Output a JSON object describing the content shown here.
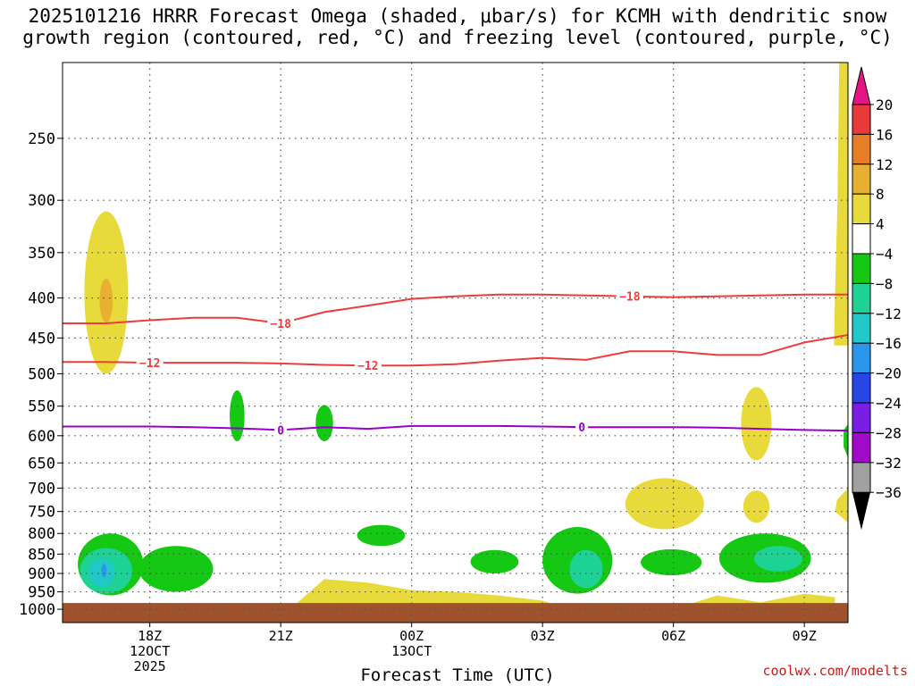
{
  "title_line1": "2025101216 HRRR Forecast Omega (shaded, μbar/s) for KCMH with dendritic snow",
  "title_line2": "growth region (contoured, red, °C) and freezing level (contoured, purple, °C)",
  "credit": "coolwx.com/modelts",
  "colors": {
    "ground": "#a0522d",
    "isotherm": "#ee3c3c",
    "freezing": "#9900cc",
    "grid": "#555555"
  },
  "chart_data": {
    "type": "heatmap",
    "title": "2025101216 HRRR Forecast Omega (shaded, μbar/s) for KCMH with dendritic snow growth region (contoured, red, °C) and freezing level (contoured, purple, °C)",
    "xlabel": "Forecast Time (UTC)",
    "ylabel": "",
    "x_ticks": [
      {
        "t": 18,
        "lines": [
          "18Z",
          "12OCT",
          "2025"
        ]
      },
      {
        "t": 21,
        "lines": [
          "21Z"
        ]
      },
      {
        "t": 24,
        "lines": [
          "00Z",
          "13OCT"
        ]
      },
      {
        "t": 27,
        "lines": [
          "03Z"
        ]
      },
      {
        "t": 30,
        "lines": [
          "06Z"
        ]
      },
      {
        "t": 33,
        "lines": [
          "09Z"
        ]
      }
    ],
    "xlim": [
      16,
      34
    ],
    "y_ticks": [
      250,
      300,
      350,
      400,
      450,
      500,
      550,
      600,
      650,
      700,
      750,
      800,
      850,
      900,
      950,
      1000
    ],
    "ylim_hpa": [
      200,
      1040
    ],
    "ylog": true,
    "colorbar": {
      "labels": [
        "20",
        "16",
        "12",
        "8",
        "4",
        "−4",
        "−8",
        "−12",
        "−16",
        "−20",
        "−24",
        "−28",
        "−32",
        "−36"
      ],
      "segments": [
        "#e8e8e8",
        "#e83a3a",
        "#e87d28",
        "#e8b030",
        "#e8da3a",
        "#ffffff",
        "#14c814",
        "#1ed296",
        "#20c8c8",
        "#2a96ee",
        "#2846e6",
        "#7a1ee6",
        "#a00ac8",
        "#a0a0a0"
      ],
      "top_arrow": "#e61482",
      "bottom_arrow": "#000000"
    },
    "contours": [
      {
        "name": "-18",
        "kind": "isotherm",
        "label_at": [
          [
            21.0,
            431
          ],
          [
            29.0,
            398
          ]
        ],
        "points": [
          [
            16,
            431
          ],
          [
            17,
            431
          ],
          [
            18,
            427
          ],
          [
            19,
            424
          ],
          [
            20,
            424
          ],
          [
            21,
            431
          ],
          [
            22,
            417
          ],
          [
            23,
            409
          ],
          [
            24,
            401
          ],
          [
            25,
            398
          ],
          [
            26,
            396
          ],
          [
            27,
            396
          ],
          [
            28,
            397
          ],
          [
            29,
            398
          ],
          [
            30,
            399
          ],
          [
            31,
            398
          ],
          [
            32,
            397
          ],
          [
            33,
            396
          ],
          [
            34,
            396
          ]
        ]
      },
      {
        "name": "-12",
        "kind": "isotherm",
        "label_at": [
          [
            18.0,
            484
          ],
          [
            23.0,
            488
          ]
        ],
        "points": [
          [
            16,
            483
          ],
          [
            17,
            483
          ],
          [
            18,
            484
          ],
          [
            19,
            484
          ],
          [
            20,
            484
          ],
          [
            21,
            485
          ],
          [
            22,
            487
          ],
          [
            23,
            488
          ],
          [
            24,
            488
          ],
          [
            25,
            486
          ],
          [
            26,
            481
          ],
          [
            27,
            477
          ],
          [
            28,
            480
          ],
          [
            29,
            468
          ],
          [
            30,
            468
          ],
          [
            31,
            473
          ],
          [
            32,
            473
          ],
          [
            33,
            456
          ],
          [
            34,
            446
          ]
        ]
      },
      {
        "name": "0",
        "kind": "freezing",
        "label_at": [
          [
            21.0,
            590
          ],
          [
            27.9,
            585
          ]
        ],
        "points": [
          [
            16,
            584
          ],
          [
            17,
            584
          ],
          [
            18,
            584
          ],
          [
            19,
            585
          ],
          [
            20,
            587
          ],
          [
            21,
            590
          ],
          [
            22,
            585
          ],
          [
            23,
            588
          ],
          [
            24,
            583
          ],
          [
            25,
            583
          ],
          [
            26,
            583
          ],
          [
            27,
            584
          ],
          [
            28,
            585
          ],
          [
            29,
            585
          ],
          [
            30,
            585
          ],
          [
            31,
            586
          ],
          [
            32,
            588
          ],
          [
            33,
            590
          ],
          [
            34,
            591
          ]
        ]
      }
    ],
    "omega_regions": [
      {
        "value": 6,
        "shape": "ellipse",
        "t": 17.0,
        "p": 400,
        "rt": 0.5,
        "rp_top": 310,
        "rp_bot": 500
      },
      {
        "value": 10,
        "shape": "ellipse",
        "t": 17.0,
        "p": 402,
        "rt": 0.15,
        "rp_top": 378,
        "rp_bot": 430
      },
      {
        "value": -6,
        "shape": "ellipse",
        "t": 17.1,
        "p": 880,
        "rt": 0.75,
        "rp_top": 800,
        "rp_bot": 960
      },
      {
        "value": -6,
        "shape": "ellipse",
        "t": 18.6,
        "p": 885,
        "rt": 0.85,
        "rp_top": 830,
        "rp_bot": 950
      },
      {
        "value": -10,
        "shape": "ellipse",
        "t": 17.0,
        "p": 885,
        "rt": 0.6,
        "rp_top": 835,
        "rp_bot": 955
      },
      {
        "value": -14,
        "shape": "ellipse",
        "t": 16.9,
        "p": 890,
        "rt": 0.3,
        "rp_top": 860,
        "rp_bot": 935
      },
      {
        "value": -18,
        "shape": "ellipse",
        "t": 16.95,
        "p": 890,
        "rt": 0.06,
        "rp_top": 875,
        "rp_bot": 910
      },
      {
        "value": -6,
        "shape": "ellipse",
        "t": 20.0,
        "p": 565,
        "rt": 0.17,
        "rp_top": 525,
        "rp_bot": 610
      },
      {
        "value": -6,
        "shape": "ellipse",
        "t": 22.0,
        "p": 575,
        "rt": 0.2,
        "rp_top": 548,
        "rp_bot": 610
      },
      {
        "value": -6,
        "shape": "ellipse",
        "t": 23.3,
        "p": 805,
        "rt": 0.55,
        "rp_top": 780,
        "rp_bot": 830
      },
      {
        "value": -6,
        "shape": "ellipse",
        "t": 25.9,
        "p": 875,
        "rt": 0.55,
        "rp_top": 840,
        "rp_bot": 900
      },
      {
        "value": -6,
        "shape": "ellipse",
        "t": 27.8,
        "p": 860,
        "rt": 0.8,
        "rp_top": 785,
        "rp_bot": 955
      },
      {
        "value": -10,
        "shape": "ellipse",
        "t": 28.0,
        "p": 885,
        "rt": 0.38,
        "rp_top": 840,
        "rp_bot": 940
      },
      {
        "value": -6,
        "shape": "ellipse",
        "t": 29.95,
        "p": 870,
        "rt": 0.7,
        "rp_top": 838,
        "rp_bot": 905
      },
      {
        "value": -6,
        "shape": "ellipse",
        "t": 32.1,
        "p": 865,
        "rt": 1.05,
        "rp_top": 800,
        "rp_bot": 925
      },
      {
        "value": -10,
        "shape": "ellipse",
        "t": 32.4,
        "p": 860,
        "rt": 0.55,
        "rp_top": 830,
        "rp_bot": 895
      },
      {
        "value": 6,
        "shape": "ellipse",
        "t": 29.8,
        "p": 730,
        "rt": 0.9,
        "rp_top": 680,
        "rp_bot": 790
      },
      {
        "value": 6,
        "shape": "ellipse",
        "t": 31.9,
        "p": 580,
        "rt": 0.35,
        "rp_top": 520,
        "rp_bot": 645
      },
      {
        "value": 6,
        "shape": "ellipse",
        "t": 31.9,
        "p": 740,
        "rt": 0.3,
        "rp_top": 705,
        "rp_bot": 775
      },
      {
        "value": 6,
        "shape": "poly",
        "points": [
          [
            33.8,
            200
          ],
          [
            34.0,
            200
          ],
          [
            34.0,
            460
          ],
          [
            33.68,
            460
          ],
          [
            33.7,
            400
          ],
          [
            33.76,
            300
          ]
        ]
      },
      {
        "value": 6,
        "shape": "poly",
        "points": [
          [
            33.75,
            725
          ],
          [
            34.0,
            700
          ],
          [
            34.0,
            775
          ],
          [
            33.7,
            750
          ]
        ]
      },
      {
        "value": -6,
        "shape": "poly",
        "points": [
          [
            33.9,
            590
          ],
          [
            34.0,
            580
          ],
          [
            34.0,
            640
          ],
          [
            33.9,
            620
          ]
        ]
      },
      {
        "value": 6,
        "shape": "poly",
        "points": [
          [
            21.0,
            995
          ],
          [
            21.3,
            990
          ],
          [
            22.0,
            915
          ],
          [
            23.0,
            925
          ],
          [
            24.0,
            945
          ],
          [
            25.0,
            950
          ],
          [
            26.0,
            960
          ],
          [
            27.0,
            975
          ],
          [
            27.5,
            995
          ]
        ]
      },
      {
        "value": 6,
        "shape": "poly",
        "points": [
          [
            30.0,
            995
          ],
          [
            30.5,
            980
          ],
          [
            31.0,
            960
          ],
          [
            32.0,
            980
          ],
          [
            33.0,
            955
          ],
          [
            33.7,
            965
          ],
          [
            33.7,
            995
          ]
        ]
      }
    ]
  }
}
